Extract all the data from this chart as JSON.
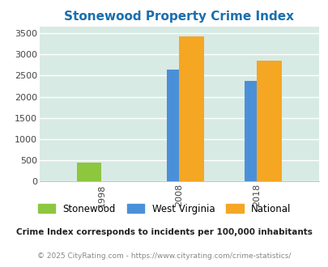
{
  "title": "Stonewood Property Crime Index",
  "years": [
    1998,
    2008,
    2018
  ],
  "series": {
    "Stonewood": [
      450,
      0,
      0
    ],
    "West Virginia": [
      0,
      2630,
      2380
    ],
    "National": [
      0,
      3430,
      2850
    ]
  },
  "colors": {
    "Stonewood": "#8dc63f",
    "West Virginia": "#4a90d9",
    "National": "#f5a623"
  },
  "ylim": [
    0,
    3650
  ],
  "yticks": [
    0,
    500,
    1000,
    1500,
    2000,
    2500,
    3000,
    3500
  ],
  "title_color": "#1a6faf",
  "title_fontsize": 11,
  "background_color": "#ddeee8",
  "footer_text1": "Crime Index corresponds to incidents per 100,000 inhabitants",
  "footer_text2": "© 2025 CityRating.com - https://www.cityrating.com/crime-statistics/",
  "bar_width": 3.2,
  "grid_color": "#ffffff",
  "axis_bg_color": "#d8eae4",
  "legend_fontsize": 8.5,
  "footer1_fontsize": 7.5,
  "footer2_fontsize": 6.5
}
